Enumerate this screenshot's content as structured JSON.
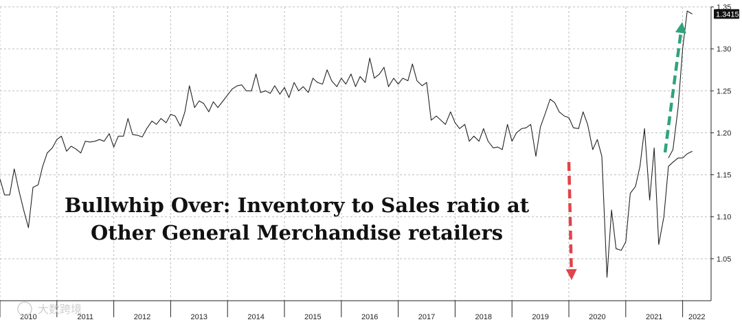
{
  "chart_data": {
    "type": "line",
    "title": "Bullwhip Over: Inventory to Sales ratio at",
    "subtitle": "Other General Merchandise retailers",
    "xlabel": "",
    "ylabel": "",
    "ylim": [
      1.0,
      1.35
    ],
    "xlim": [
      2010.0,
      2022.5
    ],
    "y_ticks": [
      "1.05",
      "1.10",
      "1.15",
      "1.20",
      "1.25",
      "1.30",
      "1.35"
    ],
    "x_ticks": [
      "2010",
      "2011",
      "2012",
      "2013",
      "2014",
      "2015",
      "2016",
      "2017",
      "2018",
      "2019",
      "2020",
      "2021",
      "2022"
    ],
    "last_value_label": "1.3415",
    "grid": true,
    "line_color": "#222222",
    "badge_color": "#111111",
    "arrow_down_color": "#e0444a",
    "arrow_up_color": "#2ea37c",
    "watermark": "大数跨境",
    "series": [
      {
        "x": [
          2010.0,
          2010.08,
          2010.17,
          2010.25,
          2010.33,
          2010.42,
          2010.5,
          2010.58,
          2010.67,
          2010.75,
          2010.83,
          2010.92,
          2011.0,
          2011.08,
          2011.17,
          2011.25,
          2011.33,
          2011.42,
          2011.5,
          2011.58,
          2011.67,
          2011.75,
          2011.83,
          2011.92,
          2012.0,
          2012.08,
          2012.17,
          2012.25,
          2012.33,
          2012.42,
          2012.5,
          2012.58,
          2012.67,
          2012.75,
          2012.83,
          2012.92,
          2013.0,
          2013.08,
          2013.17,
          2013.25,
          2013.33,
          2013.42,
          2013.5,
          2013.58,
          2013.67,
          2013.75,
          2013.83,
          2013.92,
          2014.0,
          2014.08,
          2014.17,
          2014.25,
          2014.33,
          2014.42,
          2014.5,
          2014.58,
          2014.67,
          2014.75,
          2014.83,
          2014.92,
          2015.0,
          2015.08,
          2015.17,
          2015.25,
          2015.33,
          2015.42,
          2015.5,
          2015.58,
          2015.67,
          2015.75,
          2015.83,
          2015.92,
          2016.0,
          2016.08,
          2016.17,
          2016.25,
          2016.33,
          2016.42,
          2016.5,
          2016.58,
          2016.67,
          2016.75,
          2016.83,
          2016.92,
          2017.0,
          2017.08,
          2017.17,
          2017.25,
          2017.33,
          2017.42,
          2017.5,
          2017.58,
          2017.67,
          2017.75,
          2017.83,
          2017.92,
          2018.0,
          2018.08,
          2018.17,
          2018.25,
          2018.33,
          2018.42,
          2018.5,
          2018.58,
          2018.67,
          2018.75,
          2018.83,
          2018.92,
          2019.0,
          2019.08,
          2019.17,
          2019.25,
          2019.33,
          2019.42,
          2019.5,
          2019.58,
          2019.67,
          2019.75,
          2019.83,
          2019.92,
          2020.0,
          2020.08,
          2020.17,
          2020.25,
          2020.33,
          2020.42,
          2020.5,
          2020.58,
          2020.67,
          2020.75,
          2020.83,
          2020.92,
          2021.0,
          2021.08,
          2021.17,
          2021.25,
          2021.33,
          2021.42,
          2021.5,
          2021.58,
          2021.67,
          2021.75,
          2021.83,
          2021.92,
          2022.0,
          2022.08,
          2022.17
        ],
        "y": [
          1.145,
          1.126,
          1.126,
          1.157,
          1.132,
          1.107,
          1.087,
          1.135,
          1.138,
          1.16,
          1.176,
          1.182,
          1.192,
          1.196,
          1.178,
          1.184,
          1.181,
          1.176,
          1.19,
          1.189,
          1.19,
          1.192,
          1.19,
          1.199,
          1.183,
          1.196,
          1.196,
          1.217,
          1.198,
          1.197,
          1.195,
          1.205,
          1.214,
          1.21,
          1.217,
          1.212,
          1.222,
          1.22,
          1.208,
          1.225,
          1.256,
          1.23,
          1.238,
          1.235,
          1.225,
          1.237,
          1.23,
          1.238,
          1.245,
          1.252,
          1.256,
          1.257,
          1.25,
          1.25,
          1.27,
          1.248,
          1.25,
          1.247,
          1.256,
          1.246,
          1.254,
          1.242,
          1.26,
          1.25,
          1.255,
          1.248,
          1.265,
          1.26,
          1.258,
          1.275,
          1.262,
          1.255,
          1.265,
          1.258,
          1.27,
          1.255,
          1.267,
          1.26,
          1.289,
          1.265,
          1.27,
          1.278,
          1.255,
          1.265,
          1.258,
          1.265,
          1.262,
          1.282,
          1.262,
          1.256,
          1.26,
          1.215,
          1.22,
          1.215,
          1.21,
          1.225,
          1.212,
          1.205,
          1.21,
          1.19,
          1.196,
          1.19,
          1.205,
          1.19,
          1.182,
          1.183,
          1.18,
          1.21,
          1.19,
          1.2,
          1.205,
          1.206,
          1.21,
          1.172,
          1.207,
          1.222,
          1.24,
          1.236,
          1.225,
          1.22,
          1.218,
          1.206,
          1.205,
          1.225,
          1.21,
          1.18,
          1.192,
          1.172,
          1.028,
          1.108,
          1.062,
          1.06,
          1.07,
          1.128,
          1.136,
          1.16,
          1.205,
          1.12,
          1.182,
          1.067,
          1.1,
          1.16,
          1.165,
          1.17,
          1.17,
          1.175,
          1.178
        ]
      },
      {
        "x": [
          2021.75,
          2021.83,
          2021.92,
          2022.0,
          2022.08,
          2022.17
        ],
        "y": [
          1.17,
          1.18,
          1.23,
          1.3,
          1.345,
          1.3415
        ]
      }
    ]
  }
}
